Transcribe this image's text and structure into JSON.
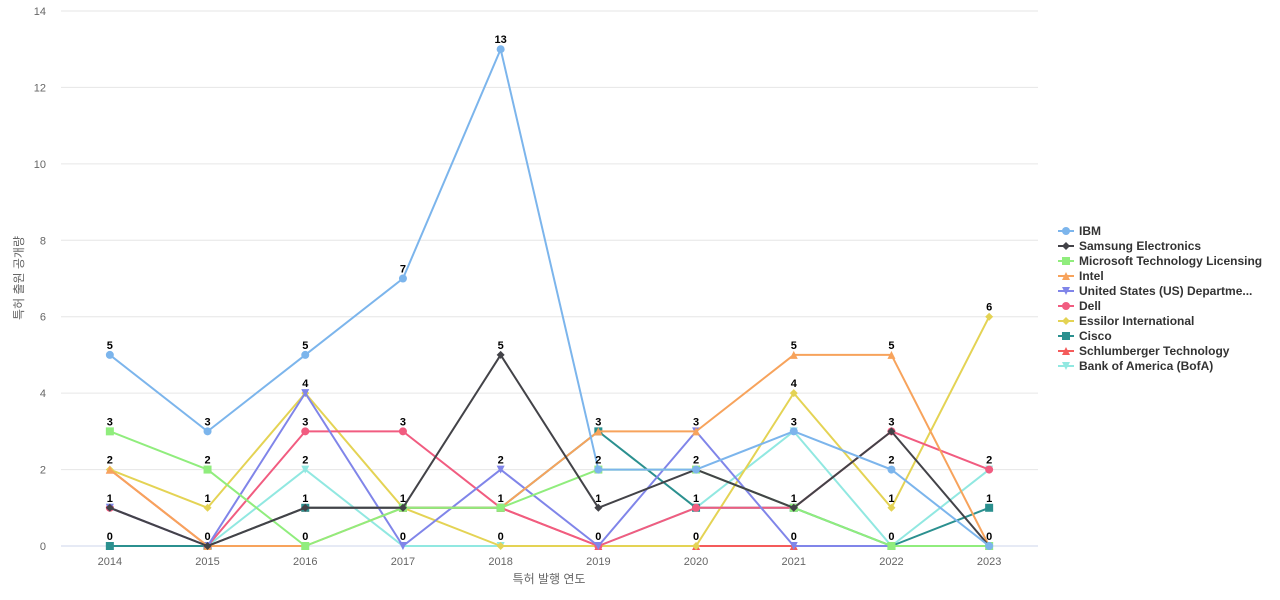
{
  "chart_data": {
    "type": "line",
    "xlabel": "특허 발행 연도",
    "ylabel": "특허 출원 공개량",
    "ylim": [
      0,
      14
    ],
    "yticks": [
      0,
      2,
      4,
      6,
      8,
      10,
      12,
      14
    ],
    "x": [
      "2014",
      "2015",
      "2016",
      "2017",
      "2018",
      "2019",
      "2020",
      "2021",
      "2022",
      "2023"
    ],
    "grid": true,
    "legend_position": "right",
    "series": [
      {
        "name": "IBM",
        "color": "#7cb5ec",
        "marker": "circle",
        "values": [
          5,
          3,
          5,
          7,
          13,
          2,
          2,
          3,
          2,
          0
        ]
      },
      {
        "name": "Samsung Electronics",
        "color": "#434348",
        "marker": "diamond",
        "values": [
          1,
          0,
          1,
          1,
          5,
          1,
          2,
          1,
          3,
          0
        ]
      },
      {
        "name": "Microsoft Technology Licensing",
        "color": "#90ed7d",
        "marker": "square",
        "values": [
          3,
          2,
          0,
          1,
          1,
          2,
          2,
          1,
          0,
          0
        ]
      },
      {
        "name": "Intel",
        "color": "#f7a35c",
        "marker": "triangle",
        "values": [
          2,
          0,
          0,
          1,
          1,
          3,
          3,
          5,
          5,
          0
        ]
      },
      {
        "name": "United States (US) Departme...",
        "color": "#8085e9",
        "marker": "triangle-down",
        "values": [
          1,
          0,
          4,
          0,
          2,
          0,
          3,
          0,
          0,
          0
        ]
      },
      {
        "name": "Dell",
        "color": "#f15c80",
        "marker": "circle",
        "values": [
          1,
          0,
          3,
          3,
          1,
          0,
          1,
          1,
          3,
          2
        ]
      },
      {
        "name": "Essilor International",
        "color": "#e4d354",
        "marker": "diamond",
        "values": [
          2,
          1,
          4,
          1,
          0,
          0,
          0,
          4,
          1,
          6
        ]
      },
      {
        "name": "Cisco",
        "color": "#2b908f",
        "marker": "square",
        "values": [
          0,
          0,
          1,
          1,
          1,
          3,
          1,
          1,
          0,
          1
        ]
      },
      {
        "name": "Schlumberger Technology",
        "color": "#f45b5b",
        "marker": "triangle",
        "values": [
          2,
          0,
          1,
          1,
          1,
          0,
          0,
          0,
          0,
          0
        ]
      },
      {
        "name": "Bank of America (BofA)",
        "color": "#91e8e1",
        "marker": "triangle-down",
        "values": [
          1,
          0,
          2,
          0,
          0,
          0,
          1,
          3,
          0,
          2
        ]
      }
    ],
    "data_labels": [
      {
        "xi": 0,
        "text": "5",
        "y": 5
      },
      {
        "xi": 0,
        "text": "3",
        "y": 3
      },
      {
        "xi": 0,
        "text": "2",
        "y": 2
      },
      {
        "xi": 0,
        "text": "1",
        "y": 1
      },
      {
        "xi": 0,
        "text": "0",
        "y": 0
      },
      {
        "xi": 1,
        "text": "3",
        "y": 3
      },
      {
        "xi": 1,
        "text": "2",
        "y": 2
      },
      {
        "xi": 1,
        "text": "1",
        "y": 1
      },
      {
        "xi": 1,
        "text": "0",
        "y": 0
      },
      {
        "xi": 2,
        "text": "5",
        "y": 5
      },
      {
        "xi": 2,
        "text": "4",
        "y": 4
      },
      {
        "xi": 2,
        "text": "3",
        "y": 3
      },
      {
        "xi": 2,
        "text": "2",
        "y": 2
      },
      {
        "xi": 2,
        "text": "1",
        "y": 1
      },
      {
        "xi": 2,
        "text": "0",
        "y": 0
      },
      {
        "xi": 3,
        "text": "7",
        "y": 7
      },
      {
        "xi": 3,
        "text": "3",
        "y": 3
      },
      {
        "xi": 3,
        "text": "1",
        "y": 1
      },
      {
        "xi": 3,
        "text": "0",
        "y": 0
      },
      {
        "xi": 4,
        "text": "13",
        "y": 13
      },
      {
        "xi": 4,
        "text": "5",
        "y": 5
      },
      {
        "xi": 4,
        "text": "2",
        "y": 2
      },
      {
        "xi": 4,
        "text": "1",
        "y": 1
      },
      {
        "xi": 4,
        "text": "0",
        "y": 0
      },
      {
        "xi": 5,
        "text": "3",
        "y": 3
      },
      {
        "xi": 5,
        "text": "2",
        "y": 2
      },
      {
        "xi": 5,
        "text": "1",
        "y": 1
      },
      {
        "xi": 5,
        "text": "0",
        "y": 0
      },
      {
        "xi": 6,
        "text": "3",
        "y": 3
      },
      {
        "xi": 6,
        "text": "2",
        "y": 2
      },
      {
        "xi": 6,
        "text": "1",
        "y": 1
      },
      {
        "xi": 6,
        "text": "0",
        "y": 0
      },
      {
        "xi": 7,
        "text": "5",
        "y": 5
      },
      {
        "xi": 7,
        "text": "4",
        "y": 4
      },
      {
        "xi": 7,
        "text": "3",
        "y": 3
      },
      {
        "xi": 7,
        "text": "1",
        "y": 1
      },
      {
        "xi": 7,
        "text": "0",
        "y": 0
      },
      {
        "xi": 8,
        "text": "5",
        "y": 5
      },
      {
        "xi": 8,
        "text": "3",
        "y": 3
      },
      {
        "xi": 8,
        "text": "2",
        "y": 2
      },
      {
        "xi": 8,
        "text": "1",
        "y": 1
      },
      {
        "xi": 8,
        "text": "0",
        "y": 0
      },
      {
        "xi": 9,
        "text": "6",
        "y": 6
      },
      {
        "xi": 9,
        "text": "2",
        "y": 2
      },
      {
        "xi": 9,
        "text": "1",
        "y": 1
      },
      {
        "xi": 9,
        "text": "0",
        "y": 0
      }
    ]
  }
}
